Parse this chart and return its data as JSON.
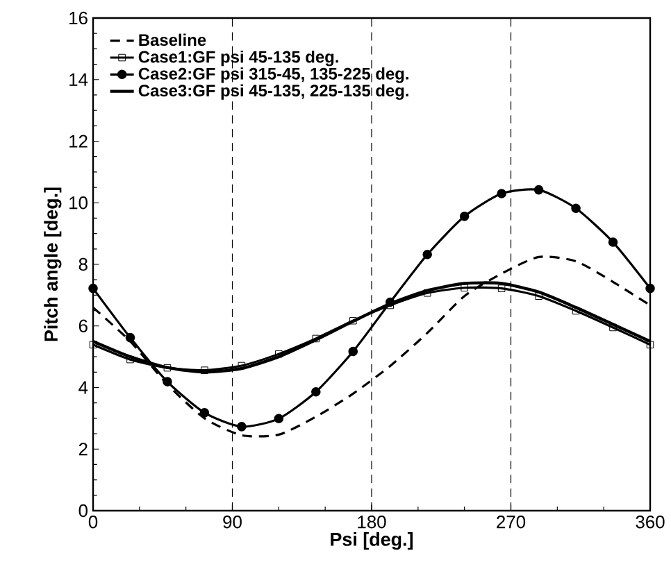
{
  "chart_data": {
    "type": "line",
    "xlabel": "Psi [deg.]",
    "ylabel": "Pitch angle [deg.]",
    "xlim": [
      0,
      360
    ],
    "ylim": [
      0,
      16
    ],
    "xticks": [
      0,
      90,
      180,
      270,
      360
    ],
    "yticks": [
      0,
      2,
      4,
      6,
      8,
      10,
      12,
      14,
      16
    ],
    "legend": "top left",
    "grid": false,
    "ref_lines": [
      {
        "axis": "x",
        "value": 90,
        "line_style": "dashed",
        "color": "#000000"
      },
      {
        "axis": "x",
        "value": 180,
        "line_style": "dashed",
        "color": "#000000"
      },
      {
        "axis": "x",
        "value": 270,
        "line_style": "dashed",
        "color": "#000000"
      }
    ],
    "series": [
      {
        "name": "Baseline",
        "color": "#000000",
        "line_style": "dashed",
        "marker": "none",
        "x": [
          0,
          24,
          48,
          72,
          96,
          120,
          144,
          168,
          192,
          216,
          240,
          264,
          288,
          312,
          336,
          360
        ],
        "values": [
          6.6,
          5.5,
          4.1,
          3.0,
          2.45,
          2.47,
          3.05,
          3.8,
          4.7,
          5.77,
          6.97,
          7.7,
          8.24,
          8.1,
          7.43,
          6.67
        ]
      },
      {
        "name": "Case1:GF psi 45-135 deg.",
        "color": "#000000",
        "line_style": "solid",
        "marker": "square",
        "x": [
          0,
          24,
          48,
          72,
          96,
          120,
          144,
          168,
          192,
          216,
          240,
          264,
          288,
          312,
          336,
          360
        ],
        "values": [
          5.39,
          4.91,
          4.64,
          4.56,
          4.71,
          5.09,
          5.59,
          6.17,
          6.67,
          7.07,
          7.24,
          7.22,
          6.97,
          6.49,
          5.95,
          5.39
        ]
      },
      {
        "name": "Case2:GF psi 315-45, 135-225 deg.",
        "color": "#000000",
        "line_style": "solid",
        "marker": "circle",
        "x": [
          0,
          24,
          48,
          72,
          96,
          120,
          144,
          168,
          192,
          216,
          240,
          264,
          288,
          312,
          336,
          360
        ],
        "values": [
          7.22,
          5.62,
          4.19,
          3.18,
          2.73,
          2.99,
          3.86,
          5.17,
          6.77,
          8.32,
          9.56,
          10.3,
          10.42,
          9.82,
          8.72,
          7.22
        ]
      },
      {
        "name": "Case3:GF psi 45-135, 225-135 deg.",
        "color": "#000000",
        "line_style": "solid",
        "marker": "none",
        "x": [
          0,
          24,
          48,
          72,
          96,
          120,
          144,
          168,
          192,
          216,
          240,
          264,
          288,
          312,
          336,
          360
        ],
        "values": [
          5.5,
          5.0,
          4.65,
          4.5,
          4.62,
          5.0,
          5.55,
          6.15,
          6.72,
          7.15,
          7.38,
          7.38,
          7.1,
          6.6,
          6.05,
          5.5
        ]
      }
    ]
  }
}
